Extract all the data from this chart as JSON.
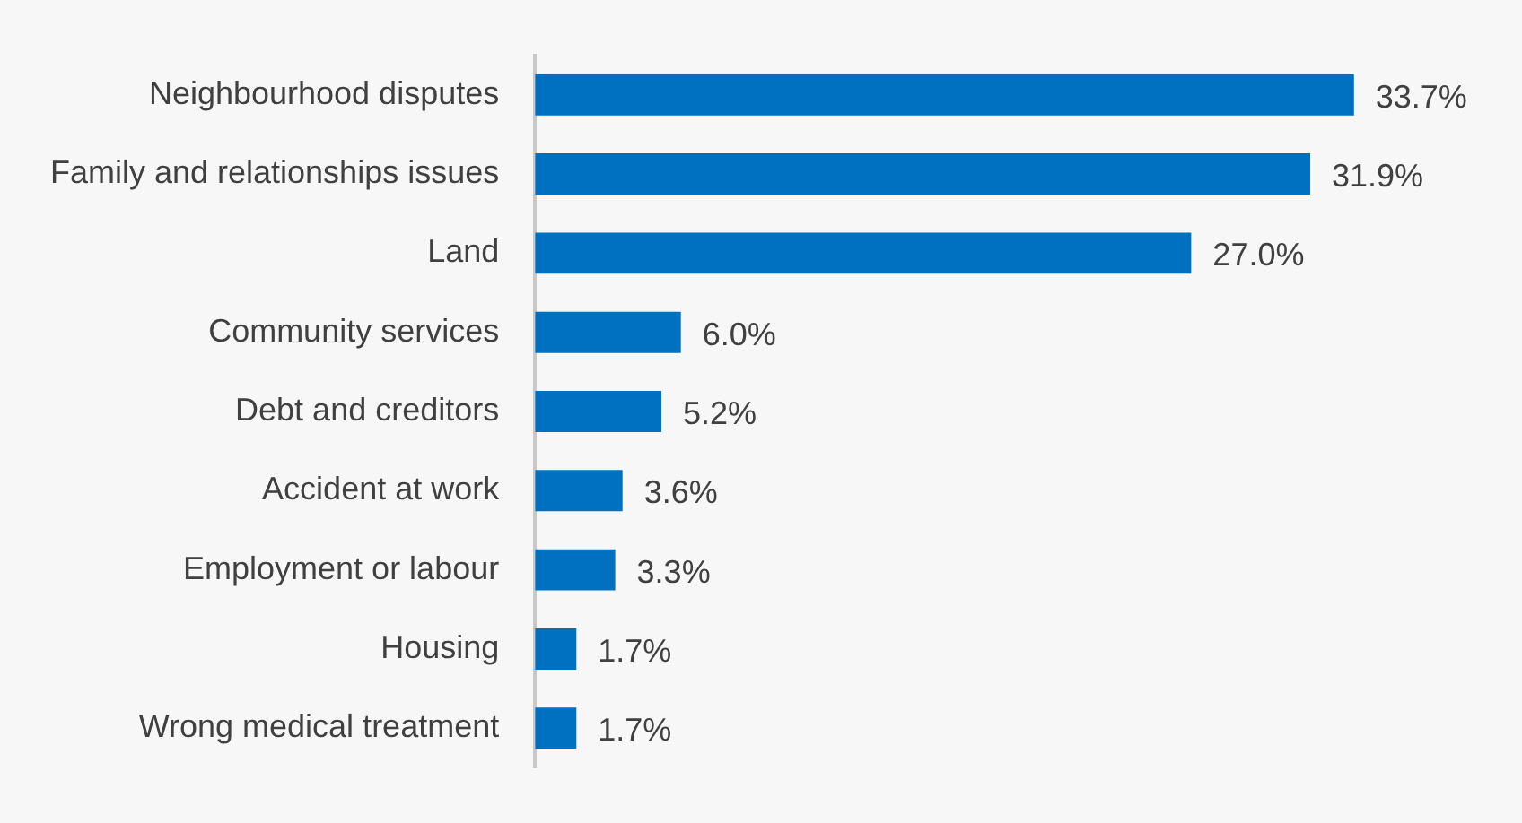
{
  "chart_data": {
    "type": "bar",
    "orientation": "horizontal",
    "categories": [
      "Neighbourhood disputes",
      "Family and relationships issues",
      "Land",
      "Community services",
      "Debt and creditors",
      "Accident at work",
      "Employment or labour",
      "Housing",
      "Wrong medical treatment"
    ],
    "values": [
      33.7,
      31.9,
      27.0,
      6.0,
      5.2,
      3.6,
      3.3,
      1.7,
      1.7
    ],
    "value_labels": [
      "33.7%",
      "31.9%",
      "27.0%",
      "6.0%",
      "5.2%",
      "3.6%",
      "3.3%",
      "1.7%",
      "1.7%"
    ],
    "color": "#0070c0",
    "grid": false,
    "legend": false,
    "tick_labels": "y"
  }
}
